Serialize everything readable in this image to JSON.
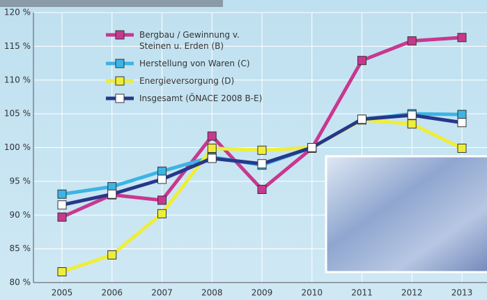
{
  "chart_data": {
    "type": "line",
    "categories": [
      "2005",
      "2006",
      "2007",
      "2008",
      "2009",
      "2010",
      "2011",
      "2012",
      "2013"
    ],
    "series": [
      {
        "name": "Bergbau / Gewinnung v.\nSteinen u. Erden (B)",
        "color": "#c8388f",
        "marker_color": "#c8388f",
        "values": [
          89.7,
          93.0,
          92.2,
          101.7,
          93.8,
          99.9,
          112.9,
          115.8,
          116.3
        ]
      },
      {
        "name": "Herstellung von Waren (C)",
        "color": "#3cb4e5",
        "marker_color": "#3cb4e5",
        "values": [
          93.1,
          94.2,
          96.5,
          98.6,
          97.4,
          100.0,
          104.2,
          105.0,
          104.9
        ]
      },
      {
        "name": "Energieversorgung (D)",
        "color": "#eeee3a",
        "marker_color": "#eeee3a",
        "values": [
          81.6,
          84.1,
          90.2,
          99.9,
          99.6,
          100.0,
          104.1,
          103.5,
          99.9
        ]
      },
      {
        "name": "Insgesamt (ÖNACE 2008 B-E)",
        "color": "#26388a",
        "marker_color": "#ffffff",
        "values": [
          91.5,
          93.1,
          95.3,
          98.4,
          97.6,
          100.0,
          104.2,
          104.8,
          103.7
        ]
      }
    ],
    "ylim": [
      80,
      120
    ],
    "yticks": [
      {
        "value": 80,
        "label": "80 %"
      },
      {
        "value": 85,
        "label": "85 %"
      },
      {
        "value": 90,
        "label": "90 %"
      },
      {
        "value": 95,
        "label": "95 %"
      },
      {
        "value": 100,
        "label": "100 %"
      },
      {
        "value": 105,
        "label": "105 %"
      },
      {
        "value": 110,
        "label": "110 %"
      },
      {
        "value": 115,
        "label": "115 %"
      },
      {
        "value": 120,
        "label": "120 %"
      }
    ],
    "grid": true
  }
}
